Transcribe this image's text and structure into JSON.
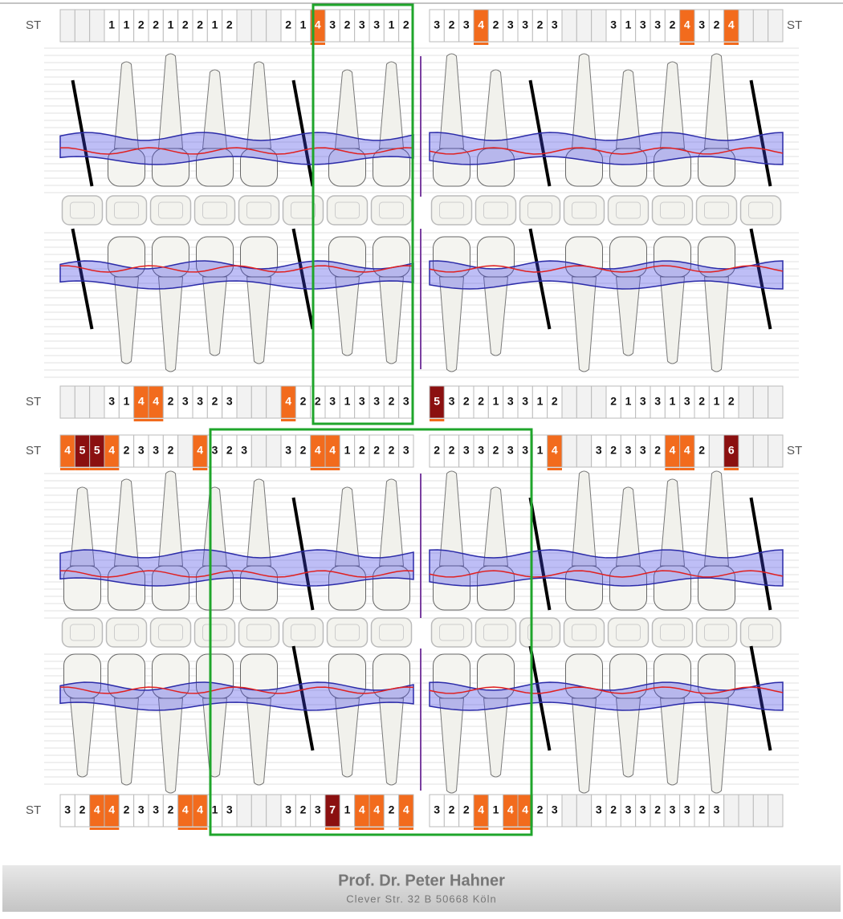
{
  "rows": [
    {
      "label": "ST",
      "label_right": "ST",
      "cells": [
        null,
        null,
        null,
        1,
        1,
        2,
        2,
        1,
        2,
        2,
        1,
        2,
        null,
        null,
        null,
        2,
        1,
        4,
        3,
        2,
        3,
        3,
        1,
        2,
        3,
        2,
        3,
        4,
        2,
        3,
        3,
        2,
        3,
        null,
        null,
        null,
        3,
        1,
        3,
        3,
        2,
        4,
        3,
        2,
        4,
        null,
        null,
        null
      ]
    },
    {
      "label": "ST",
      "cells": [
        null,
        null,
        null,
        3,
        1,
        4,
        4,
        2,
        3,
        3,
        2,
        3,
        null,
        null,
        null,
        4,
        2,
        2,
        3,
        1,
        3,
        3,
        2,
        3,
        5,
        3,
        2,
        2,
        1,
        3,
        3,
        1,
        2,
        null,
        null,
        null,
        2,
        1,
        3,
        3,
        1,
        3,
        2,
        1,
        2,
        null,
        null,
        null
      ]
    },
    {
      "label": "ST",
      "label_right": "ST",
      "cells": [
        4,
        5,
        5,
        4,
        2,
        3,
        3,
        2,
        null,
        4,
        3,
        2,
        3,
        null,
        null,
        3,
        2,
        4,
        4,
        1,
        2,
        2,
        2,
        3,
        2,
        2,
        3,
        3,
        2,
        3,
        3,
        1,
        4,
        null,
        null,
        3,
        2,
        3,
        3,
        2,
        4,
        4,
        2,
        null,
        6,
        null,
        null,
        null
      ]
    },
    {
      "label": "ST",
      "cells": [
        3,
        2,
        4,
        4,
        2,
        3,
        3,
        2,
        4,
        4,
        1,
        3,
        null,
        null,
        null,
        3,
        2,
        3,
        7,
        1,
        4,
        4,
        2,
        4,
        3,
        2,
        2,
        4,
        1,
        4,
        4,
        2,
        3,
        null,
        null,
        3,
        2,
        3,
        3,
        2,
        3,
        3,
        2,
        3,
        null,
        null,
        null,
        null
      ]
    }
  ],
  "highlight": [
    {
      "min": 4,
      "color": "#f26b1d"
    },
    {
      "min": 5,
      "color": "#8b1010"
    }
  ],
  "footer": {
    "name": "Prof. Dr. Peter Hahner",
    "address": "Clever Str. 32 B 50668 Köln"
  }
}
